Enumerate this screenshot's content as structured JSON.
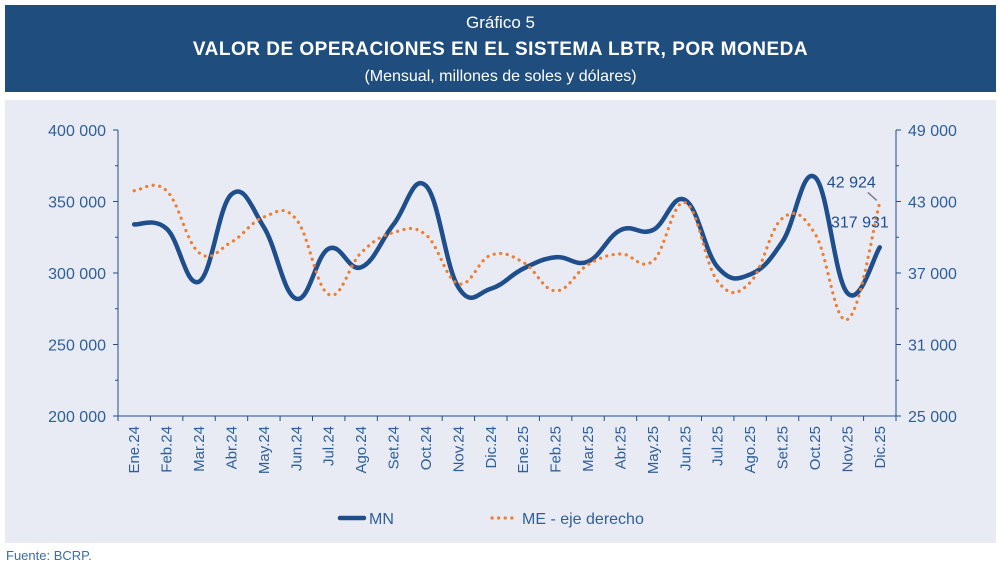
{
  "header": {
    "supertitle": "Gráfico 5",
    "title": "VALOR DE OPERACIONES EN EL SISTEMA LBTR, POR MONEDA",
    "subtitle": "(Mensual, millones de soles y dólares)"
  },
  "footer": {
    "source": "Fuente: BCRP."
  },
  "chart_data": {
    "type": "line",
    "categories": [
      "Ene.24",
      "Feb.24",
      "Mar.24",
      "Abr.24",
      "May.24",
      "Jun.24",
      "Jul.24",
      "Ago.24",
      "Set.24",
      "Oct.24",
      "Nov.24",
      "Dic.24",
      "Ene.25",
      "Feb.25",
      "Mar.25",
      "Abr.25",
      "May.25",
      "Jun.25",
      "Jul.25",
      "Ago.25",
      "Set.25",
      "Oct.25",
      "Nov.25",
      "Dic.25"
    ],
    "y_left": {
      "ticks": [
        200000,
        250000,
        300000,
        350000,
        400000
      ],
      "tick_labels": [
        "200 000",
        "250 000",
        "300 000",
        "350 000",
        "400 000"
      ],
      "range": [
        200000,
        400000
      ]
    },
    "y_right": {
      "ticks": [
        25000,
        31000,
        37000,
        43000,
        49000
      ],
      "tick_labels": [
        "25 000",
        "31 000",
        "37 000",
        "43 000",
        "49 000"
      ],
      "range": [
        25000,
        49000
      ]
    },
    "series": [
      {
        "name": "MN",
        "axis": "left",
        "color": "#1f4e8c",
        "style": "solid",
        "values": [
          334000,
          331000,
          294000,
          355000,
          332000,
          282000,
          317000,
          304000,
          334000,
          361000,
          290000,
          289000,
          303000,
          311000,
          308000,
          330000,
          330000,
          351000,
          304000,
          299000,
          322000,
          367000,
          286000,
          317931
        ],
        "end_label": "317 931"
      },
      {
        "name": "ME - eje derecho",
        "axis": "right",
        "color": "#ee7d31",
        "style": "dotted",
        "values": [
          43900,
          43900,
          38700,
          39600,
          41700,
          41500,
          35200,
          38700,
          40400,
          40200,
          36100,
          38500,
          37900,
          35500,
          37700,
          38600,
          38000,
          42900,
          36300,
          36200,
          41600,
          40300,
          33100,
          42924
        ],
        "end_label": "42 924"
      }
    ],
    "legend_position": "bottom-center",
    "grid": false
  }
}
